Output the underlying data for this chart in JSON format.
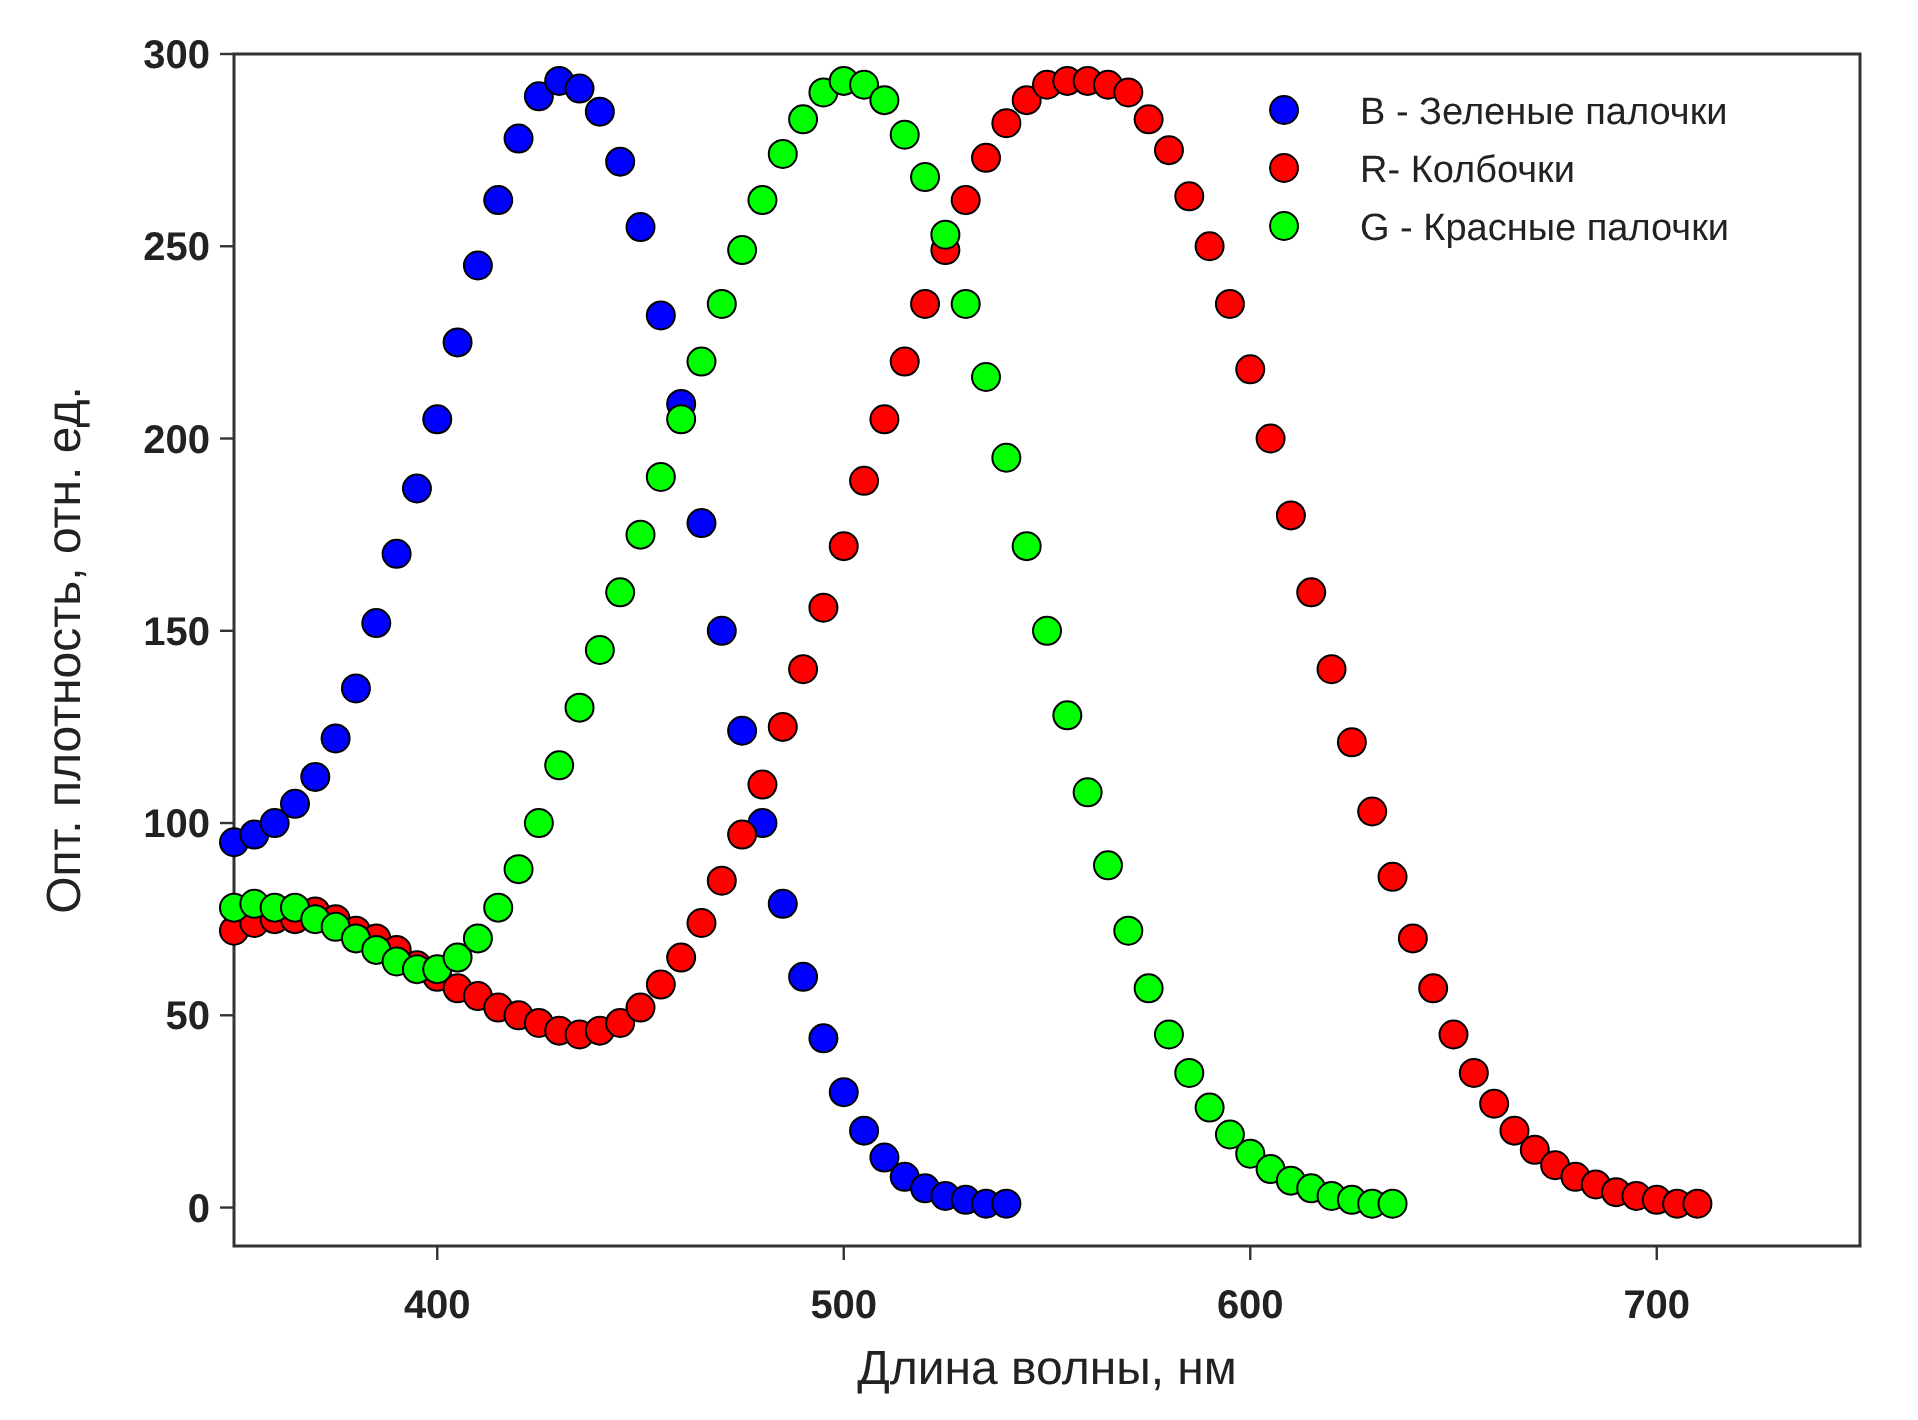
{
  "chart_data": {
    "type": "scatter",
    "xlabel": "Длина волны, нм",
    "ylabel": "Опт. плотность, отн. ед.",
    "xlim": [
      350,
      750
    ],
    "ylim": [
      -10,
      300
    ],
    "xticks": [
      400,
      500,
      600,
      700
    ],
    "yticks": [
      0,
      50,
      100,
      150,
      200,
      250,
      300
    ],
    "grid": false,
    "legend": "top right",
    "marker": "circle",
    "series": [
      {
        "name": "B - Зеленые палочки",
        "color": "#0000ff",
        "x": [
          350,
          355,
          360,
          365,
          370,
          375,
          380,
          385,
          390,
          395,
          400,
          405,
          410,
          415,
          420,
          425,
          430,
          435,
          440,
          445,
          450,
          455,
          460,
          465,
          470,
          475,
          480,
          485,
          490,
          495,
          500,
          505,
          510,
          515,
          520,
          525,
          530,
          535,
          540
        ],
        "values": [
          95,
          97,
          100,
          105,
          112,
          122,
          135,
          152,
          170,
          187,
          205,
          225,
          245,
          262,
          278,
          289,
          293,
          291,
          285,
          272,
          255,
          232,
          209,
          178,
          150,
          124,
          100,
          79,
          60,
          44,
          30,
          20,
          13,
          8,
          5,
          3,
          2,
          1,
          1
        ]
      },
      {
        "name": "R- Колбочки",
        "color": "#ff0000",
        "x": [
          350,
          355,
          360,
          365,
          370,
          375,
          380,
          385,
          390,
          395,
          400,
          405,
          410,
          415,
          420,
          425,
          430,
          435,
          440,
          445,
          450,
          455,
          460,
          465,
          470,
          475,
          480,
          485,
          490,
          495,
          500,
          505,
          510,
          515,
          520,
          525,
          530,
          535,
          540,
          545,
          550,
          555,
          560,
          565,
          570,
          575,
          580,
          585,
          590,
          595,
          600,
          605,
          610,
          615,
          620,
          625,
          630,
          635,
          640,
          645,
          650,
          655,
          660,
          665,
          670,
          675,
          680,
          685,
          690,
          695,
          700,
          705,
          710
        ],
        "values": [
          72,
          74,
          75,
          75,
          77,
          75,
          72,
          70,
          67,
          63,
          60,
          57,
          55,
          52,
          50,
          48,
          46,
          45,
          46,
          48,
          52,
          58,
          65,
          74,
          85,
          97,
          110,
          125,
          140,
          156,
          172,
          189,
          205,
          220,
          235,
          249,
          262,
          273,
          282,
          288,
          292,
          293,
          293,
          292,
          290,
          283,
          275,
          263,
          250,
          235,
          218,
          200,
          180,
          160,
          140,
          121,
          103,
          86,
          70,
          57,
          45,
          35,
          27,
          20,
          15,
          11,
          8,
          6,
          4,
          3,
          2,
          1,
          1
        ]
      },
      {
        "name": "G - Красные палочки",
        "color": "#00ff00",
        "x": [
          350,
          355,
          360,
          365,
          370,
          375,
          380,
          385,
          390,
          395,
          400,
          405,
          410,
          415,
          420,
          425,
          430,
          435,
          440,
          445,
          450,
          455,
          460,
          465,
          470,
          475,
          480,
          485,
          490,
          495,
          500,
          505,
          510,
          515,
          520,
          525,
          530,
          535,
          540,
          545,
          550,
          555,
          560,
          565,
          570,
          575,
          580,
          585,
          590,
          595,
          600,
          605,
          610,
          615,
          620,
          625,
          630,
          635
        ],
        "values": [
          78,
          79,
          78,
          78,
          75,
          73,
          70,
          67,
          64,
          62,
          62,
          65,
          70,
          78,
          88,
          100,
          115,
          130,
          145,
          160,
          175,
          190,
          205,
          220,
          235,
          249,
          262,
          274,
          283,
          290,
          293,
          292,
          288,
          279,
          268,
          253,
          235,
          216,
          195,
          172,
          150,
          128,
          108,
          89,
          72,
          57,
          45,
          35,
          26,
          19,
          14,
          10,
          7,
          5,
          3,
          2,
          1,
          1
        ]
      }
    ]
  }
}
